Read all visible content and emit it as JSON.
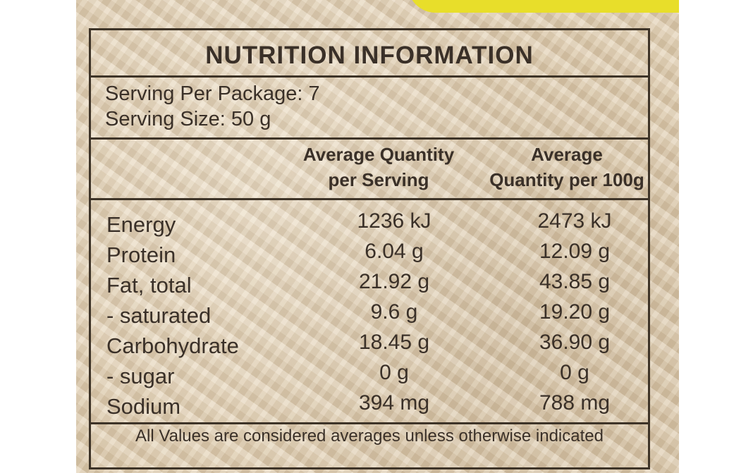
{
  "label": {
    "title": "NUTRITION INFORMATION",
    "serving_per_package": "Serving Per Package: 7",
    "serving_size": "Serving Size: 50 g",
    "column_headers": {
      "per_serving_line1": "Average Quantity",
      "per_serving_line2": "per Serving",
      "per_100g_line1": "Average",
      "per_100g_line2": "Quantity  per 100g"
    },
    "rows": [
      {
        "nutrient": "Energy",
        "per_serving": "1236 kJ",
        "per_100g": "2473 kJ"
      },
      {
        "nutrient": "Protein",
        "per_serving": "6.04 g",
        "per_100g": "12.09 g"
      },
      {
        "nutrient": "Fat, total",
        "per_serving": "21.92 g",
        "per_100g": "43.85 g"
      },
      {
        "nutrient": "- saturated",
        "per_serving": "9.6 g",
        "per_100g": "19.20 g"
      },
      {
        "nutrient": "Carbohydrate",
        "per_serving": "18.45 g",
        "per_100g": "36.90 g"
      },
      {
        "nutrient": "- sugar",
        "per_serving": "0 g",
        "per_100g": "0 g"
      },
      {
        "nutrient": "Sodium",
        "per_serving": "394 mg",
        "per_100g": "788 mg"
      }
    ],
    "footer": "All Values are considered averages unless otherwise indicated"
  },
  "colors": {
    "packaging_background": "#d9c7ab",
    "packaging_accent_yellow": "#e8de2a",
    "label_ink": "#3e3428"
  }
}
